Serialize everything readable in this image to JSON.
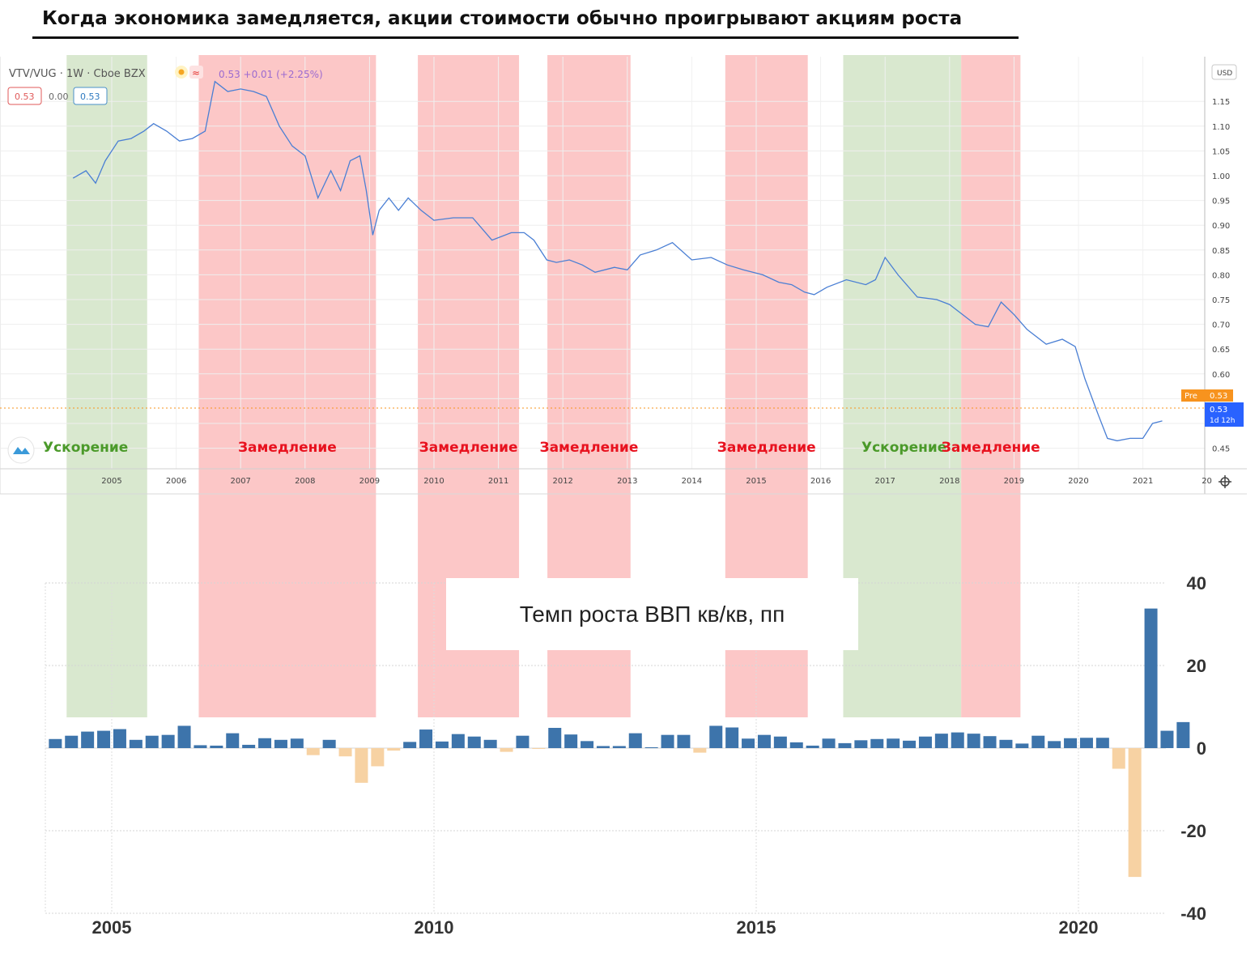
{
  "title": "Когда экономика замедляется, акции стоимости обычно проигрывают акциям роста",
  "colors": {
    "accel": "#d9e8cf",
    "decel": "#fcc7c7",
    "line": "#4a7fd4",
    "bar_pos": "#3d74ab",
    "bar_neg": "#f7d2a3",
    "accel_text": "#4b9a2a",
    "decel_text": "#e8121f",
    "pre_badge": "#f7931e",
    "price_badge": "#2962ff"
  },
  "toolbar": {
    "symbol": "VTV/VUG · 1W · Cboe BZX",
    "quote": "0.53 +0.01 (+2.25%)",
    "box_a": "0.53",
    "box_b": "0.00",
    "box_c": "0.53",
    "currency": "USD",
    "pre_label": "Pre",
    "pre_value": "0.53",
    "price_value": "0.53",
    "price_time": "1d 12h",
    "wave_icon": "≈",
    "logo_icon": "cloud-icon",
    "settings_icon": "gear-icon"
  },
  "regions": [
    {
      "label": "Ускорение",
      "kind": "accel",
      "start": 2004.3,
      "end": 2005.55
    },
    {
      "label": "Замедление",
      "kind": "decel",
      "start": 2006.35,
      "end": 2009.1
    },
    {
      "label": "Замедление",
      "kind": "decel",
      "start": 2009.75,
      "end": 2011.32
    },
    {
      "label": "Замедление",
      "kind": "decel",
      "start": 2011.76,
      "end": 2013.05
    },
    {
      "label": "Замедление",
      "kind": "decel",
      "start": 2014.52,
      "end": 2015.8
    },
    {
      "label": "Ускорение",
      "kind": "accel",
      "start": 2016.35,
      "end": 2018.18
    },
    {
      "label": "Замедление",
      "kind": "decel",
      "start": 2018.18,
      "end": 2019.1
    }
  ],
  "chart_data": [
    {
      "type": "line",
      "title": "VTV/VUG · 1W · Cboe BZX",
      "ylabel": "USD",
      "xlim": [
        2004.0,
        2021.9
      ],
      "ylim": [
        0.41,
        1.22
      ],
      "x_ticks": [
        "2005",
        "2006",
        "2007",
        "2008",
        "2009",
        "2010",
        "2011",
        "2012",
        "2013",
        "2014",
        "2015",
        "2016",
        "2017",
        "2018",
        "2019",
        "2020",
        "2021",
        "20"
      ],
      "y_ticks": [
        "1.15",
        "1.10",
        "1.05",
        "1.00",
        "0.95",
        "0.90",
        "0.85",
        "0.80",
        "0.75",
        "0.70",
        "0.65",
        "0.60",
        "0.45"
      ],
      "x": [
        2004.4,
        2004.6,
        2004.75,
        2004.9,
        2005.1,
        2005.3,
        2005.5,
        2005.65,
        2005.85,
        2006.05,
        2006.25,
        2006.45,
        2006.6,
        2006.8,
        2007.0,
        2007.2,
        2007.4,
        2007.6,
        2007.8,
        2008.0,
        2008.2,
        2008.4,
        2008.55,
        2008.7,
        2008.85,
        2008.95,
        2009.05,
        2009.15,
        2009.3,
        2009.45,
        2009.6,
        2009.8,
        2010.0,
        2010.3,
        2010.6,
        2010.9,
        2011.2,
        2011.4,
        2011.55,
        2011.75,
        2011.9,
        2012.1,
        2012.3,
        2012.5,
        2012.8,
        2013.0,
        2013.2,
        2013.45,
        2013.7,
        2014.0,
        2014.3,
        2014.55,
        2014.8,
        2015.1,
        2015.35,
        2015.55,
        2015.75,
        2015.9,
        2016.1,
        2016.4,
        2016.7,
        2016.85,
        2017.0,
        2017.2,
        2017.5,
        2017.8,
        2018.0,
        2018.2,
        2018.4,
        2018.6,
        2018.8,
        2019.0,
        2019.2,
        2019.5,
        2019.75,
        2019.95,
        2020.1,
        2020.3,
        2020.45,
        2020.6,
        2020.8,
        2021.0,
        2021.15,
        2021.3
      ],
      "y": [
        0.995,
        1.01,
        0.985,
        1.03,
        1.07,
        1.075,
        1.09,
        1.105,
        1.09,
        1.07,
        1.075,
        1.09,
        1.19,
        1.17,
        1.175,
        1.17,
        1.16,
        1.1,
        1.06,
        1.04,
        0.955,
        1.01,
        0.97,
        1.03,
        1.04,
        0.97,
        0.88,
        0.93,
        0.955,
        0.93,
        0.955,
        0.93,
        0.91,
        0.915,
        0.915,
        0.87,
        0.885,
        0.885,
        0.87,
        0.83,
        0.825,
        0.83,
        0.82,
        0.805,
        0.815,
        0.81,
        0.84,
        0.85,
        0.865,
        0.83,
        0.835,
        0.82,
        0.81,
        0.8,
        0.785,
        0.78,
        0.765,
        0.76,
        0.775,
        0.79,
        0.78,
        0.79,
        0.835,
        0.8,
        0.755,
        0.75,
        0.74,
        0.72,
        0.7,
        0.695,
        0.745,
        0.72,
        0.69,
        0.66,
        0.67,
        0.655,
        0.59,
        0.52,
        0.47,
        0.465,
        0.47,
        0.47,
        0.5,
        0.505
      ]
    },
    {
      "type": "bar",
      "title": "Темп роста ВВП кв/кв, пп",
      "ylim": [
        -40,
        40
      ],
      "y_ticks": [
        "40",
        "20",
        "0",
        "-20",
        "-40"
      ],
      "x_ticks": [
        "2005",
        "2010",
        "2015",
        "2020"
      ],
      "x_start": 2004.0,
      "step": 0.25,
      "values": [
        2.2,
        3.0,
        4.0,
        4.2,
        4.6,
        2.0,
        3.0,
        3.2,
        5.4,
        0.7,
        0.6,
        3.6,
        0.8,
        2.4,
        2.0,
        2.3,
        -1.7,
        2.0,
        -2.0,
        -8.4,
        -4.4,
        -0.6,
        1.5,
        4.5,
        1.6,
        3.4,
        2.8,
        2.0,
        -0.9,
        3.0,
        -0.2,
        4.9,
        3.3,
        1.7,
        0.5,
        0.5,
        3.6,
        0.2,
        3.2,
        3.2,
        -1.1,
        5.4,
        5.0,
        2.3,
        3.2,
        2.8,
        1.4,
        0.6,
        2.3,
        1.2,
        1.9,
        2.2,
        2.3,
        1.8,
        2.8,
        3.5,
        3.8,
        3.5,
        2.9,
        2.0,
        1.1,
        3.0,
        1.7,
        2.4,
        2.5,
        2.5,
        -5.0,
        -31.2,
        33.8,
        4.2,
        6.3
      ]
    }
  ],
  "gdp_label": "Темп роста ВВП кв/кв, пп"
}
